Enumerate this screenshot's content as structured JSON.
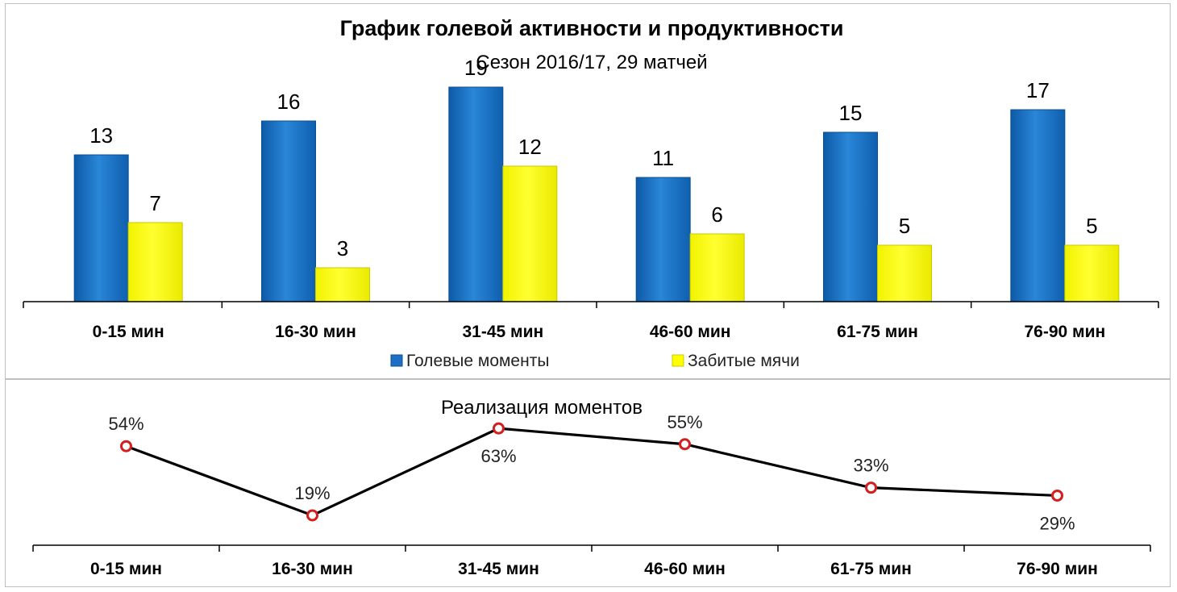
{
  "chart_data": [
    {
      "type": "bar",
      "title": "График голевой активности и продуктивности",
      "subtitle": "Сезон 2016/17, 29 матчей",
      "categories": [
        "0-15 мин",
        "16-30 мин",
        "31-45 мин",
        "46-60 мин",
        "61-75 мин",
        "76-90 мин"
      ],
      "series": [
        {
          "name": "Голевые моменты",
          "values": [
            13,
            16,
            19,
            11,
            15,
            17
          ],
          "color": "#1f6fc5"
        },
        {
          "name": "Забитые мячи",
          "values": [
            7,
            3,
            12,
            6,
            5,
            5
          ],
          "color": "#ffff00"
        }
      ],
      "ylim": [
        0,
        20
      ],
      "grid": false,
      "legend": "bottom",
      "data_labels": true
    },
    {
      "type": "line",
      "title": "Реализация моментов",
      "categories": [
        "0-15 мин",
        "16-30 мин",
        "31-45 мин",
        "46-60 мин",
        "61-75 мин",
        "76-90 мин"
      ],
      "series": [
        {
          "values": [
            54,
            19,
            63,
            55,
            33,
            29
          ],
          "labels": [
            "54%",
            "19%",
            "63%",
            "55%",
            "33%",
            "29%"
          ],
          "color": "#000000",
          "marker_color": "#d21f1f"
        }
      ],
      "ylim": [
        0,
        70
      ],
      "unit": "%",
      "grid": false,
      "data_labels": true
    }
  ]
}
